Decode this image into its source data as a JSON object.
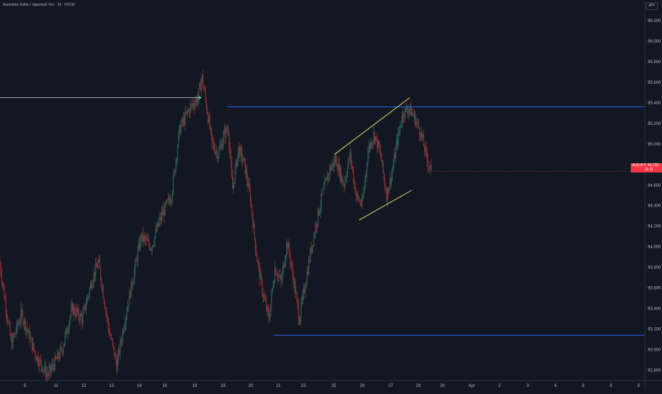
{
  "header": {
    "title": "Australian Dollar / Japanese Yen · 1h · FXCM",
    "currency": "JPY"
  },
  "price_tag": {
    "symbol": "AUDJPY",
    "price": "94.735",
    "countdown": "11:11"
  },
  "colors": {
    "background": "#131722",
    "up_candle": "#2c5e55",
    "down_candle": "#8e2e35",
    "support_resistance": "#2962ff",
    "channel": "#e8e37a",
    "arrow": "#d1d4dc",
    "price_tag": "#f23645"
  },
  "chart_data": {
    "type": "candlestick",
    "interval": "1h",
    "y_axis": {
      "ticks": [
        92.8,
        93.0,
        93.2,
        93.4,
        93.6,
        93.8,
        94.0,
        94.2,
        94.4,
        94.6,
        94.8,
        95.0,
        95.2,
        95.4,
        95.6,
        95.8,
        96.0,
        96.2
      ],
      "tick_labels": [
        "92.800",
        "93.000",
        "93.200",
        "93.400",
        "93.600",
        "93.800",
        "94.000",
        "94.200",
        "94.400",
        "94.600",
        "94.800",
        "95.000",
        "95.200",
        "95.400",
        "95.600",
        "95.800",
        "96.000",
        "96.200"
      ],
      "range": [
        92.7,
        96.4
      ]
    },
    "x_axis": {
      "labels": [
        "9",
        "11",
        "12",
        "13",
        "14",
        "16",
        "18",
        "19",
        "20",
        "21",
        "23",
        "25",
        "26",
        "27",
        "28",
        "30",
        "Apr",
        "2",
        "3",
        "4",
        "6",
        "8",
        "9"
      ],
      "range_days": [
        8.4,
        40.2
      ]
    },
    "price_path": [
      {
        "day": 8.4,
        "price": 93.88
      },
      {
        "day": 9.0,
        "price": 93.05
      },
      {
        "day": 9.5,
        "price": 93.35
      },
      {
        "day": 10.2,
        "price": 92.95
      },
      {
        "day": 10.8,
        "price": 92.75
      },
      {
        "day": 11.5,
        "price": 93.0
      },
      {
        "day": 12.0,
        "price": 93.4
      },
      {
        "day": 12.5,
        "price": 93.3
      },
      {
        "day": 13.0,
        "price": 93.7
      },
      {
        "day": 13.3,
        "price": 93.85
      },
      {
        "day": 13.8,
        "price": 93.2
      },
      {
        "day": 14.2,
        "price": 92.85
      },
      {
        "day": 14.6,
        "price": 93.3
      },
      {
        "day": 15.0,
        "price": 93.7
      },
      {
        "day": 15.4,
        "price": 94.1
      },
      {
        "day": 15.9,
        "price": 94.0
      },
      {
        "day": 16.4,
        "price": 94.3
      },
      {
        "day": 16.9,
        "price": 94.5
      },
      {
        "day": 17.3,
        "price": 95.15
      },
      {
        "day": 17.8,
        "price": 95.35
      },
      {
        "day": 18.2,
        "price": 95.45
      },
      {
        "day": 18.4,
        "price": 95.65
      },
      {
        "day": 18.6,
        "price": 95.4
      },
      {
        "day": 18.9,
        "price": 95.0
      },
      {
        "day": 19.2,
        "price": 94.9
      },
      {
        "day": 19.5,
        "price": 95.1
      },
      {
        "day": 19.7,
        "price": 95.15
      },
      {
        "day": 19.9,
        "price": 94.55
      },
      {
        "day": 20.2,
        "price": 94.95
      },
      {
        "day": 20.5,
        "price": 94.8
      },
      {
        "day": 20.8,
        "price": 94.45
      },
      {
        "day": 21.1,
        "price": 93.9
      },
      {
        "day": 21.4,
        "price": 93.55
      },
      {
        "day": 21.7,
        "price": 93.3
      },
      {
        "day": 22.0,
        "price": 93.8
      },
      {
        "day": 22.3,
        "price": 93.65
      },
      {
        "day": 22.6,
        "price": 94.05
      },
      {
        "day": 22.9,
        "price": 93.7
      },
      {
        "day": 23.2,
        "price": 93.3
      },
      {
        "day": 23.5,
        "price": 93.65
      },
      {
        "day": 23.8,
        "price": 94.0
      },
      {
        "day": 24.1,
        "price": 94.3
      },
      {
        "day": 24.4,
        "price": 94.55
      },
      {
        "day": 24.7,
        "price": 94.75
      },
      {
        "day": 25.0,
        "price": 94.85
      },
      {
        "day": 25.4,
        "price": 94.6
      },
      {
        "day": 25.7,
        "price": 94.9
      },
      {
        "day": 26.0,
        "price": 94.5
      },
      {
        "day": 26.3,
        "price": 94.4
      },
      {
        "day": 26.6,
        "price": 94.95
      },
      {
        "day": 26.9,
        "price": 95.1
      },
      {
        "day": 27.2,
        "price": 94.9
      },
      {
        "day": 27.5,
        "price": 94.5
      },
      {
        "day": 27.8,
        "price": 94.75
      },
      {
        "day": 28.0,
        "price": 95.0
      },
      {
        "day": 28.3,
        "price": 95.3
      },
      {
        "day": 28.6,
        "price": 95.35
      },
      {
        "day": 28.9,
        "price": 95.25
      },
      {
        "day": 29.2,
        "price": 95.1
      },
      {
        "day": 29.5,
        "price": 94.85
      },
      {
        "day": 29.7,
        "price": 94.74
      }
    ],
    "annotations": [
      {
        "type": "horizontal_ray",
        "name": "resistance",
        "price": 95.36,
        "from_day": 19.6
      },
      {
        "type": "horizontal_ray",
        "name": "support",
        "price": 93.14,
        "from_day": 21.9
      },
      {
        "type": "arrow",
        "name": "prior-high-arrow",
        "price": 95.45,
        "from_day": 8.4,
        "to_day": 18.3
      },
      {
        "type": "trend_line",
        "name": "channel-upper",
        "points": [
          {
            "day": 24.9,
            "price": 94.9
          },
          {
            "day": 28.6,
            "price": 95.45
          }
        ]
      },
      {
        "type": "trend_line",
        "name": "channel-lower",
        "points": [
          {
            "day": 26.1,
            "price": 94.26
          },
          {
            "day": 28.7,
            "price": 94.55
          }
        ]
      }
    ],
    "last_price": 94.735
  }
}
